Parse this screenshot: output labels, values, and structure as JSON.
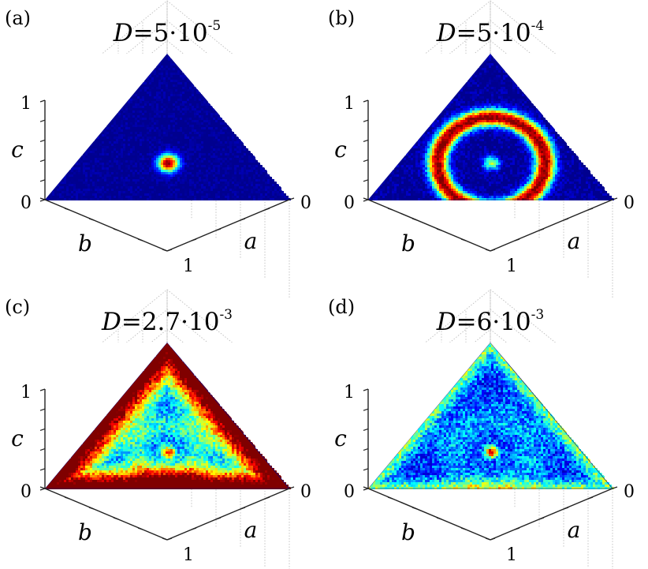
{
  "chart_data": [
    {
      "type": "heatmap",
      "panel": "(a)",
      "title": {
        "prefix": "D=5·10",
        "exponent": "-5"
      },
      "axes": {
        "a": {
          "label": "a",
          "ticks": [
            "0",
            "1"
          ]
        },
        "b": {
          "label": "b",
          "ticks": [
            "0",
            "1"
          ]
        },
        "c": {
          "label": "c",
          "ticks": [
            "0",
            "1"
          ]
        }
      },
      "grid": true,
      "density": {
        "center_peak": 1.0,
        "center_spread": 0.085,
        "ring_peak": 0.0,
        "ring_radius": 0.0,
        "ring_width": 0.0,
        "edge_peak": 0.0,
        "background": 0.0,
        "noise": 0.05
      }
    },
    {
      "type": "heatmap",
      "panel": "(b)",
      "title": {
        "prefix": "D=5·10",
        "exponent": "-4"
      },
      "axes": {
        "a": {
          "label": "a",
          "ticks": [
            "0",
            "1"
          ]
        },
        "b": {
          "label": "b",
          "ticks": [
            "0",
            "1"
          ]
        },
        "c": {
          "label": "c",
          "ticks": [
            "0",
            "1"
          ]
        }
      },
      "grid": true,
      "density": {
        "center_peak": 0.55,
        "center_spread": 0.07,
        "ring_peak": 1.0,
        "ring_radius": 0.62,
        "ring_width": 0.17,
        "edge_peak": 0.0,
        "background": 0.0,
        "noise": 0.08
      }
    },
    {
      "type": "heatmap",
      "panel": "(c)",
      "title": {
        "prefix": "D=2.7·10",
        "exponent": "-3"
      },
      "axes": {
        "a": {
          "label": "a",
          "ticks": [
            "0",
            "1"
          ]
        },
        "b": {
          "label": "b",
          "ticks": [
            "0",
            "1"
          ]
        },
        "c": {
          "label": "c",
          "ticks": [
            "0",
            "1"
          ]
        }
      },
      "grid": true,
      "density": {
        "center_peak": 0.6,
        "center_spread": 0.06,
        "ring_peak": 0.2,
        "ring_radius": 0.35,
        "ring_width": 0.25,
        "edge_peak": 0.95,
        "edge_width": 0.09,
        "background": 0.2,
        "noise": 0.12
      }
    },
    {
      "type": "heatmap",
      "panel": "(d)",
      "title": {
        "prefix": "D=6·10",
        "exponent": "-3"
      },
      "axes": {
        "a": {
          "label": "a",
          "ticks": [
            "0",
            "1"
          ]
        },
        "b": {
          "label": "b",
          "ticks": [
            "0",
            "1"
          ]
        },
        "c": {
          "label": "c",
          "ticks": [
            "0",
            "1"
          ]
        }
      },
      "grid": true,
      "density": {
        "center_peak": 0.72,
        "center_spread": 0.055,
        "ring_peak": 0.12,
        "ring_radius": 0.45,
        "ring_width": 0.3,
        "edge_peak": 0.32,
        "edge_width": 0.04,
        "background": 0.18,
        "noise": 0.13
      }
    }
  ],
  "colormap": [
    "#00008f",
    "#0000ff",
    "#00ffff",
    "#ffff00",
    "#ff0000",
    "#800000"
  ]
}
